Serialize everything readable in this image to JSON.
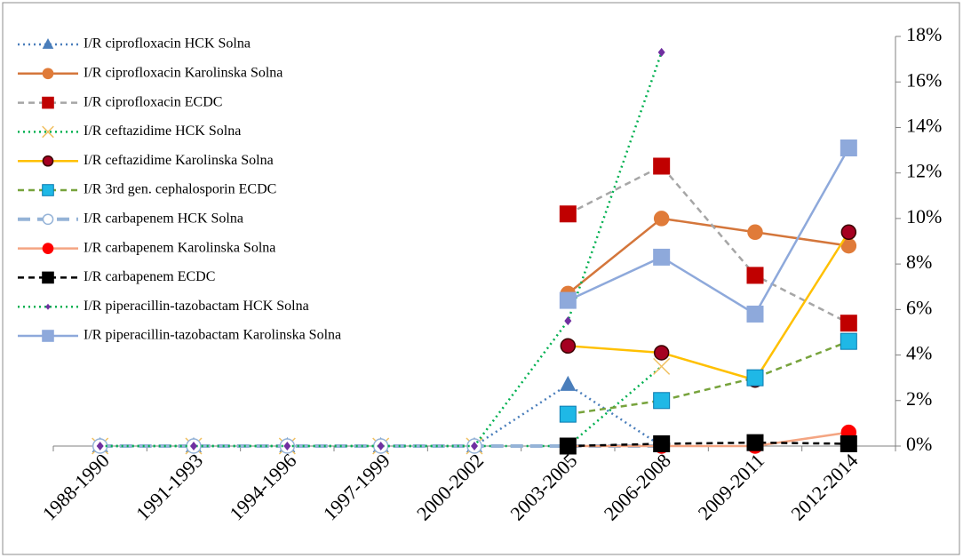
{
  "chart_data": {
    "type": "line",
    "categories": [
      "1988-1990",
      "1991-1993",
      "1994-1996",
      "1997-1999",
      "2000-2002",
      "2003-2005",
      "2006-2008",
      "2009-2011",
      "2012-2014"
    ],
    "ylim": [
      0,
      18
    ],
    "yticks": [
      {
        "value": 0,
        "label": "0%"
      },
      {
        "value": 2,
        "label": "2%"
      },
      {
        "value": 4,
        "label": "4%"
      },
      {
        "value": 6,
        "label": "6%"
      },
      {
        "value": 8,
        "label": "8%"
      },
      {
        "value": 10,
        "label": "10%"
      },
      {
        "value": 12,
        "label": "12%"
      },
      {
        "value": 14,
        "label": "14%"
      },
      {
        "value": 16,
        "label": "16%"
      },
      {
        "value": 18,
        "label": "18%"
      }
    ],
    "y_axis_side": "right",
    "legend": "upper left",
    "series": [
      {
        "name": "I/R ciprofloxacin HCK Solna",
        "color": "#4a7ebb",
        "marker_color": "#4a7ebb",
        "dash": "dotted",
        "marker": "triangle",
        "values": [
          0,
          0,
          0,
          0,
          0,
          2.7,
          0,
          null,
          null
        ]
      },
      {
        "name": "I/R ciprofloxacin Karolinska Solna",
        "color": "#d4763b",
        "marker_color": "#e07b39",
        "dash": "solid",
        "marker": "circle",
        "values": [
          null,
          null,
          null,
          null,
          null,
          6.7,
          10.0,
          9.4,
          8.8
        ]
      },
      {
        "name": "I/R ciprofloxacin ECDC",
        "color": "#a6a6a6",
        "marker_color": "#c00000",
        "dash": "dashed",
        "marker": "square",
        "values": [
          null,
          null,
          null,
          null,
          null,
          10.2,
          12.3,
          7.5,
          5.4
        ]
      },
      {
        "name": "I/R ceftazidime HCK Solna",
        "color": "#00b050",
        "marker_color": "#f0c060",
        "dash": "dotted",
        "marker": "x",
        "values": [
          0,
          0,
          0,
          0,
          0,
          0,
          3.5,
          null,
          null
        ]
      },
      {
        "name": "I/R ceftazidime Karolinska Solna",
        "color": "#ffc000",
        "marker_color": "#a50021",
        "dash": "solid",
        "marker": "circle",
        "values": [
          null,
          null,
          null,
          null,
          null,
          4.4,
          4.1,
          2.9,
          9.4
        ]
      },
      {
        "name": "I/R 3rd gen. cephalosporin ECDC",
        "color": "#77a33c",
        "marker_color": "#1fb8e6",
        "dash": "dashed",
        "marker": "square",
        "values": [
          null,
          null,
          null,
          null,
          null,
          1.4,
          2.0,
          3.0,
          4.6
        ]
      },
      {
        "name": "I/R carbapenem HCK Solna",
        "color": "#95b3d7",
        "marker_color": "#ffffff",
        "dash": "longdash",
        "marker": "open-circle",
        "values": [
          0,
          0,
          0,
          0,
          0,
          0,
          0,
          null,
          null
        ]
      },
      {
        "name": "I/R carbapenem Karolinska Solna",
        "color": "#f4a582",
        "marker_color": "#ff0000",
        "dash": "solid",
        "marker": "circle",
        "values": [
          null,
          null,
          null,
          null,
          null,
          0,
          0,
          0,
          0.6
        ]
      },
      {
        "name": "I/R carbapenem ECDC",
        "color": "#000000",
        "marker_color": "#000000",
        "dash": "dashed",
        "marker": "square",
        "values": [
          null,
          null,
          null,
          null,
          null,
          0,
          0.1,
          0.15,
          0.1
        ]
      },
      {
        "name": "I/R piperacillin-tazobactam HCK Solna",
        "color": "#00b050",
        "marker_color": "#7030a0",
        "dash": "dotted",
        "marker": "diamond",
        "values": [
          0,
          0,
          0,
          0,
          0,
          5.5,
          17.3,
          null,
          null
        ]
      },
      {
        "name": "I/R piperacillin-tazobactam Karolinska Solna",
        "color": "#8ea9db",
        "marker_color": "#8ea9db",
        "dash": "solid",
        "marker": "square",
        "values": [
          null,
          null,
          null,
          null,
          null,
          6.4,
          8.3,
          5.8,
          13.1
        ]
      }
    ]
  }
}
